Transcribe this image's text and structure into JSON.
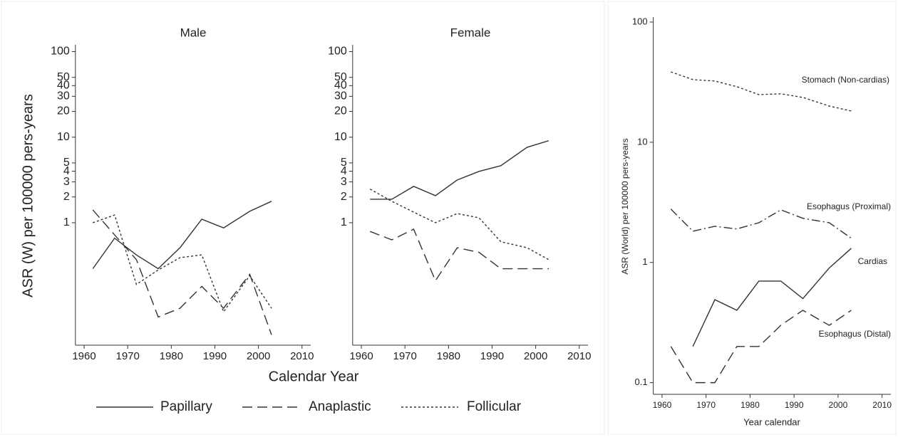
{
  "chart_data": [
    {
      "type": "line",
      "title": "Male",
      "xlabel": "Calendar Year",
      "ylabel": "ASR (W) per 100000 pers-years",
      "log_y": true,
      "grid": false,
      "x": [
        1962,
        1967,
        1972,
        1977,
        1982,
        1987,
        1992,
        1998,
        2003
      ],
      "xlim": [
        1958,
        2012
      ],
      "xticks": [
        1960,
        1970,
        1980,
        1990,
        2000,
        2010
      ],
      "ylim": [
        0.037,
        120
      ],
      "yticks": [
        1,
        2,
        3,
        4,
        5,
        10,
        20,
        30,
        40,
        50,
        100
      ],
      "series": [
        {
          "name": "Papillary",
          "color": "#333333",
          "style": "solid",
          "values": [
            0.29,
            0.66,
            0.42,
            0.29,
            0.51,
            1.1,
            0.87,
            1.36,
            1.78
          ]
        },
        {
          "name": "Anaplastic",
          "color": "#333333",
          "style": "dash",
          "values": [
            1.41,
            0.72,
            0.37,
            0.079,
            0.1,
            0.18,
            0.1,
            0.25,
            0.049
          ]
        },
        {
          "name": "Follicular",
          "color": "#333333",
          "style": "dot",
          "values": [
            1.0,
            1.23,
            0.19,
            0.28,
            0.39,
            0.42,
            0.091,
            0.24,
            0.1
          ]
        }
      ]
    },
    {
      "type": "line",
      "title": "Female",
      "log_y": true,
      "grid": false,
      "x": [
        1962,
        1967,
        1972,
        1977,
        1982,
        1987,
        1992,
        1998,
        2003
      ],
      "xlim": [
        1958,
        2012
      ],
      "xticks": [
        1960,
        1970,
        1980,
        1990,
        2000,
        2010
      ],
      "ylim": [
        0.037,
        120
      ],
      "yticks": [
        1,
        2,
        3,
        4,
        5,
        10,
        20,
        30,
        40,
        50,
        100
      ],
      "series": [
        {
          "name": "Papillary",
          "color": "#333333",
          "style": "solid",
          "values": [
            1.88,
            1.88,
            2.66,
            2.07,
            3.16,
            3.98,
            4.64,
            7.6,
            9.1
          ]
        },
        {
          "name": "Anaplastic",
          "color": "#333333",
          "style": "dash",
          "values": [
            0.79,
            0.63,
            0.84,
            0.21,
            0.51,
            0.45,
            0.29,
            0.29,
            0.29
          ]
        },
        {
          "name": "Follicular",
          "color": "#333333",
          "style": "dot",
          "values": [
            2.47,
            1.78,
            1.33,
            1.0,
            1.28,
            1.14,
            0.6,
            0.51,
            0.37
          ]
        }
      ]
    },
    {
      "type": "line",
      "xlabel": "Year calendar",
      "ylabel": "ASR (World) per 100000 pers-years",
      "log_y": true,
      "grid": false,
      "x": [
        1962,
        1967,
        1972,
        1977,
        1982,
        1987,
        1992,
        1998,
        2003
      ],
      "xlim": [
        1958,
        2012
      ],
      "xticks": [
        1960,
        1970,
        1980,
        1990,
        2000,
        2010
      ],
      "ylim": [
        0.08,
        110
      ],
      "yticks": [
        0.1,
        1,
        10,
        100
      ],
      "series": [
        {
          "name": "Stomach (Non-cardias)",
          "color": "#333333",
          "style": "dot",
          "values": [
            38.5,
            33.2,
            32.3,
            29,
            24.9,
            25.3,
            23.6,
            20,
            18.2
          ]
        },
        {
          "name": "Esophagus (Proximal)",
          "color": "#333333",
          "style": "dashdot",
          "values": [
            2.78,
            1.82,
            2.0,
            1.9,
            2.14,
            2.74,
            2.33,
            2.14,
            1.59
          ]
        },
        {
          "name": "Cardias",
          "color": "#333333",
          "style": "solid",
          "values": [
            null,
            0.2,
            0.49,
            0.4,
            0.7,
            0.7,
            0.5,
            0.9,
            1.31
          ]
        },
        {
          "name": "Esophagus (Distal)",
          "color": "#333333",
          "style": "dash",
          "values": [
            0.2,
            0.1,
            0.1,
            0.2,
            0.2,
            0.3,
            0.4,
            0.3,
            0.4
          ]
        }
      ]
    }
  ]
}
